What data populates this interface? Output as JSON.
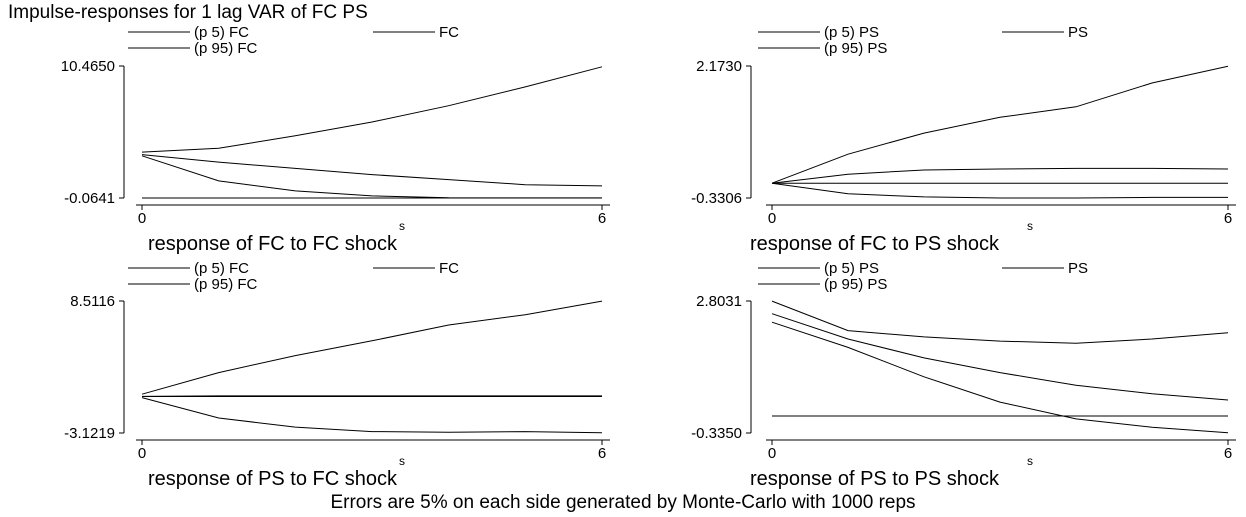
{
  "title": "Impulse-responses for 1 lag VAR of FC PS",
  "footnote": "Errors are 5% on each side generated by Monte-Carlo with 1000 reps",
  "chart_data": [
    {
      "type": "line",
      "subtitle": "response of FC to FC shock",
      "xlabel": "s",
      "x": [
        0,
        1,
        2,
        3,
        4,
        5,
        6
      ],
      "xticks": [
        "0",
        "6"
      ],
      "ylim": [
        -0.0641,
        10.465
      ],
      "yticks": [
        "10.4650",
        "-0.0641"
      ],
      "legend": [
        "(p 5) FC",
        "FC",
        "(p 95) FC"
      ],
      "series": [
        {
          "name": "(p 5) FC",
          "values": [
            3.3,
            1.3,
            0.5,
            0.1,
            -0.05,
            -0.06,
            -0.06
          ]
        },
        {
          "name": "FC",
          "values": [
            3.4,
            2.8,
            2.3,
            1.8,
            1.4,
            1.0,
            0.9
          ]
        },
        {
          "name": "(p 95) FC",
          "values": [
            3.6,
            3.9,
            4.9,
            6.0,
            7.3,
            8.8,
            10.4
          ]
        }
      ],
      "hlines": [
        -0.064
      ]
    },
    {
      "type": "line",
      "subtitle": "response of FC to PS shock",
      "xlabel": "s",
      "x": [
        0,
        1,
        2,
        3,
        4,
        5,
        6
      ],
      "xticks": [
        "0",
        "6"
      ],
      "ylim": [
        -0.3306,
        2.173
      ],
      "yticks": [
        "2.1730",
        "-0.3306"
      ],
      "legend": [
        "(p 5) PS",
        "PS",
        "(p 95) PS"
      ],
      "series": [
        {
          "name": "(p 5) PS",
          "values": [
            -0.05,
            -0.25,
            -0.31,
            -0.33,
            -0.33,
            -0.32,
            -0.32
          ]
        },
        {
          "name": "PS",
          "values": [
            -0.05,
            0.12,
            0.2,
            0.22,
            0.23,
            0.23,
            0.22
          ]
        },
        {
          "name": "(p 95) PS",
          "values": [
            -0.05,
            0.5,
            0.9,
            1.2,
            1.4,
            1.85,
            2.17
          ]
        }
      ],
      "hlines": [
        -0.05
      ]
    },
    {
      "type": "line",
      "subtitle": "response of PS to FC shock",
      "xlabel": "s",
      "x": [
        0,
        1,
        2,
        3,
        4,
        5,
        6
      ],
      "xticks": [
        "0",
        "6"
      ],
      "ylim": [
        -3.1219,
        8.5116
      ],
      "yticks": [
        "8.5116",
        "-3.1219"
      ],
      "legend": [
        "(p 5) FC",
        "FC",
        "(p 95) FC"
      ],
      "series": [
        {
          "name": "(p 5) FC",
          "values": [
            0.0,
            -1.8,
            -2.6,
            -3.0,
            -3.05,
            -3.0,
            -3.1
          ]
        },
        {
          "name": "FC",
          "values": [
            0.1,
            0.15,
            0.15,
            0.15,
            0.15,
            0.15,
            0.15
          ]
        },
        {
          "name": "(p 95) FC",
          "values": [
            0.3,
            2.2,
            3.7,
            5.0,
            6.4,
            7.3,
            8.5
          ]
        }
      ],
      "hlines": [
        0.1
      ]
    },
    {
      "type": "line",
      "subtitle": "response of PS to PS shock",
      "xlabel": "s",
      "x": [
        0,
        1,
        2,
        3,
        4,
        5,
        6
      ],
      "xticks": [
        "0",
        "6"
      ],
      "ylim": [
        -0.335,
        2.8031
      ],
      "yticks": [
        "2.8031",
        "-0.3350"
      ],
      "legend": [
        "(p 5) PS",
        "PS",
        "(p 95) PS"
      ],
      "series": [
        {
          "name": "(p 5) PS",
          "values": [
            2.3,
            1.7,
            1.0,
            0.4,
            0.0,
            -0.2,
            -0.33
          ]
        },
        {
          "name": "PS",
          "values": [
            2.5,
            1.9,
            1.45,
            1.1,
            0.8,
            0.6,
            0.45
          ]
        },
        {
          "name": "(p 95) PS",
          "values": [
            2.8,
            2.1,
            1.95,
            1.85,
            1.8,
            1.9,
            2.05
          ]
        }
      ],
      "hlines": [
        0.07
      ]
    }
  ]
}
